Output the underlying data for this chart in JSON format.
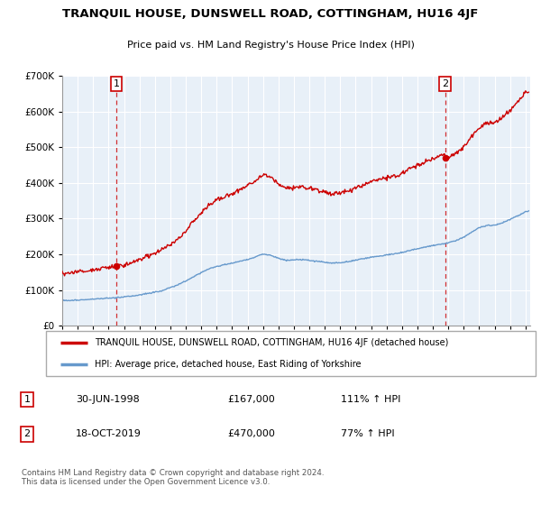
{
  "title": "TRANQUIL HOUSE, DUNSWELL ROAD, COTTINGHAM, HU16 4JF",
  "subtitle": "Price paid vs. HM Land Registry's House Price Index (HPI)",
  "legend_line1": "TRANQUIL HOUSE, DUNSWELL ROAD, COTTINGHAM, HU16 4JF (detached house)",
  "legend_line2": "HPI: Average price, detached house, East Riding of Yorkshire",
  "note": "Contains HM Land Registry data © Crown copyright and database right 2024.\nThis data is licensed under the Open Government Licence v3.0.",
  "sale1_date": "30-JUN-1998",
  "sale1_price": "£167,000",
  "sale1_hpi": "111% ↑ HPI",
  "sale2_date": "18-OCT-2019",
  "sale2_price": "£470,000",
  "sale2_hpi": "77% ↑ HPI",
  "red_color": "#cc0000",
  "blue_color": "#6699cc",
  "chart_bg": "#e8f0f8",
  "background": "#ffffff",
  "grid_color": "#ffffff",
  "ylim": [
    0,
    700000
  ],
  "xlim_start": 1995.0,
  "xlim_end": 2025.3,
  "sale1_x": 1998.5,
  "sale1_y": 167000,
  "sale2_x": 2019.79,
  "sale2_y": 470000,
  "hpi_years": [
    1995.0,
    1995.5,
    1996.0,
    1996.5,
    1997.0,
    1997.5,
    1998.0,
    1998.5,
    1999.0,
    1999.5,
    2000.0,
    2000.5,
    2001.0,
    2001.5,
    2002.0,
    2002.5,
    2003.0,
    2003.5,
    2004.0,
    2004.5,
    2005.0,
    2005.5,
    2006.0,
    2006.5,
    2007.0,
    2007.5,
    2008.0,
    2008.5,
    2009.0,
    2009.5,
    2010.0,
    2010.5,
    2011.0,
    2011.5,
    2012.0,
    2012.5,
    2013.0,
    2013.5,
    2014.0,
    2014.5,
    2015.0,
    2015.5,
    2016.0,
    2016.5,
    2017.0,
    2017.5,
    2018.0,
    2018.5,
    2019.0,
    2019.5,
    2020.0,
    2020.5,
    2021.0,
    2021.5,
    2022.0,
    2022.5,
    2023.0,
    2023.5,
    2024.0,
    2024.5,
    2025.0
  ],
  "hpi_prices": [
    70000,
    71000,
    72000,
    73000,
    75000,
    77000,
    78000,
    79500,
    81000,
    84000,
    87000,
    91000,
    95000,
    100000,
    107000,
    116000,
    126000,
    138000,
    150000,
    161000,
    167000,
    172000,
    176000,
    181000,
    186000,
    192000,
    200000,
    196000,
    188000,
    182000,
    183000,
    184000,
    182000,
    180000,
    177000,
    175000,
    176000,
    179000,
    183000,
    188000,
    192000,
    195000,
    198000,
    201000,
    205000,
    210000,
    215000,
    220000,
    224000,
    228000,
    232000,
    238000,
    248000,
    262000,
    274000,
    280000,
    282000,
    288000,
    298000,
    308000,
    320000
  ]
}
